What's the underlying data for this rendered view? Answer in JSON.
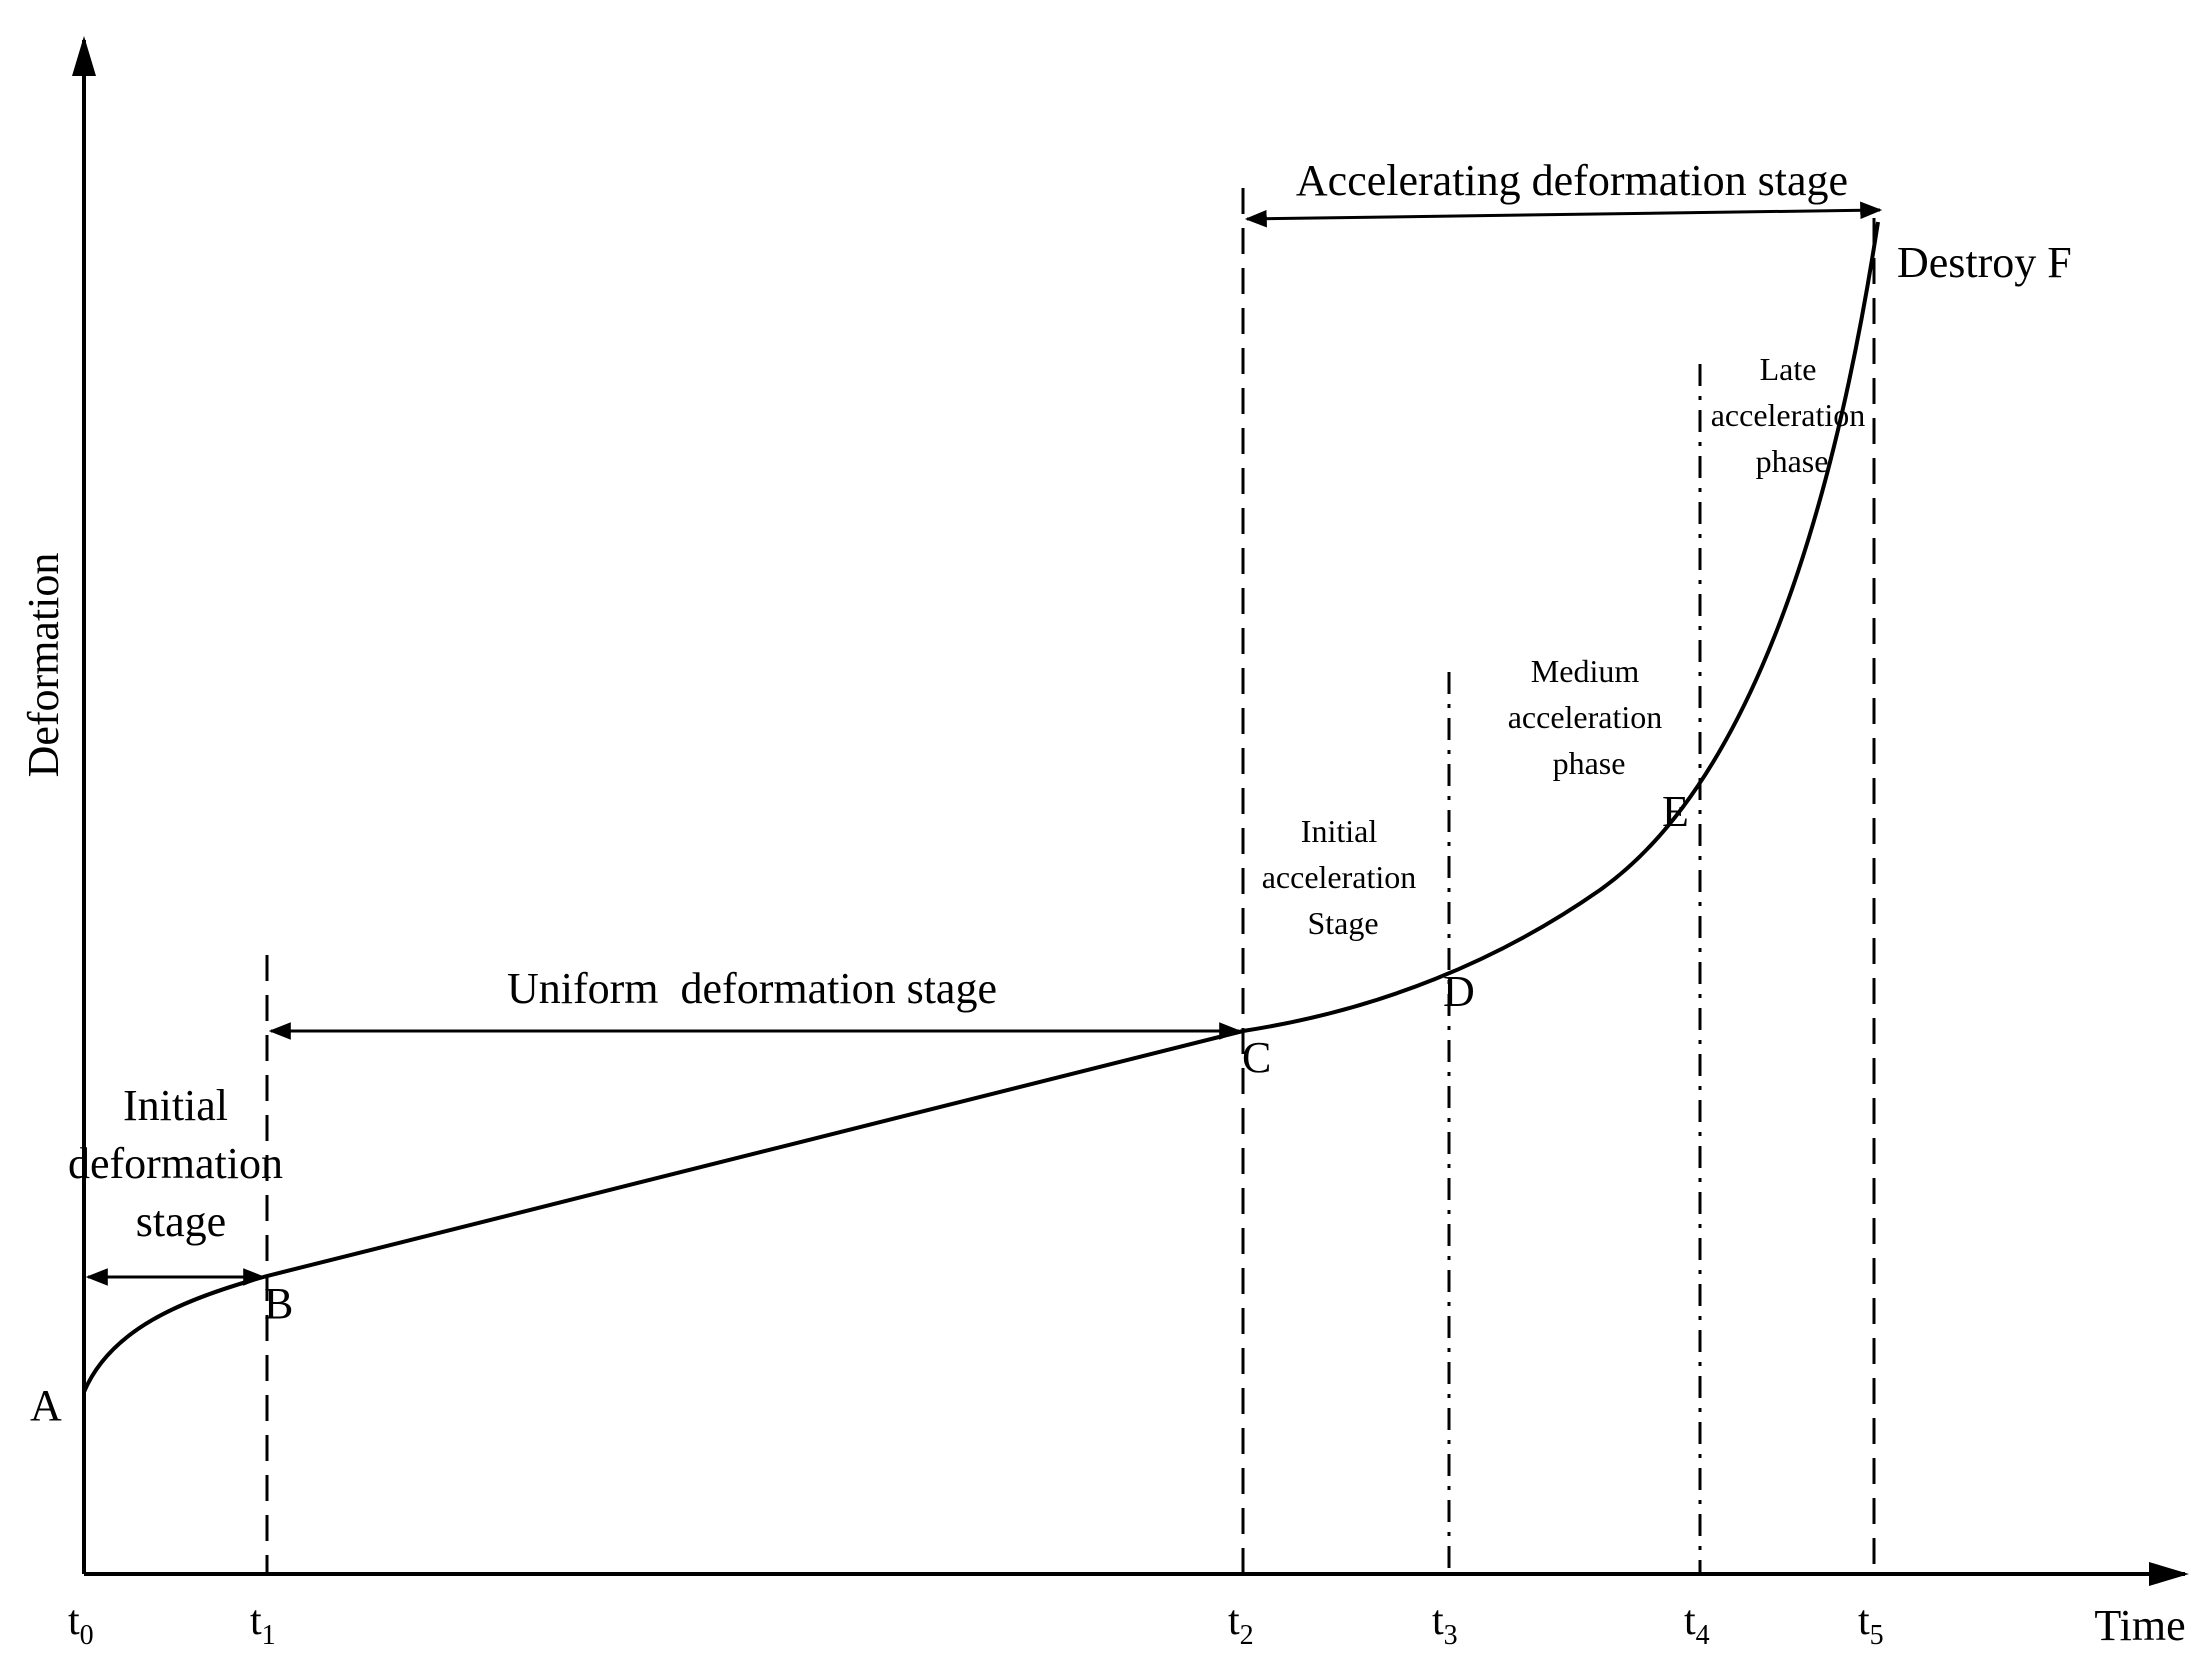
{
  "axes": {
    "y_label": "Deformation",
    "x_label": "Time"
  },
  "time_ticks": [
    {
      "main": "t",
      "sub": "0"
    },
    {
      "main": "t",
      "sub": "1"
    },
    {
      "main": "t",
      "sub": "2"
    },
    {
      "main": "t",
      "sub": "3"
    },
    {
      "main": "t",
      "sub": "4"
    },
    {
      "main": "t",
      "sub": "5"
    }
  ],
  "points": {
    "A": "A",
    "B": "B",
    "C": "C",
    "D": "D",
    "E": "E",
    "F": "Destroy F"
  },
  "stages": {
    "initial": [
      "Initial",
      "deformation",
      "stage"
    ],
    "uniform": "Uniform  deformation stage",
    "accelerating": "Accelerating deformation stage"
  },
  "phases": {
    "initial_acceleration": [
      "Initial",
      "acceleration",
      "Stage"
    ],
    "medium_acceleration": [
      "Medium",
      "acceleration",
      "phase"
    ],
    "late_acceleration": [
      "Late",
      "acceleration",
      "phase"
    ]
  }
}
